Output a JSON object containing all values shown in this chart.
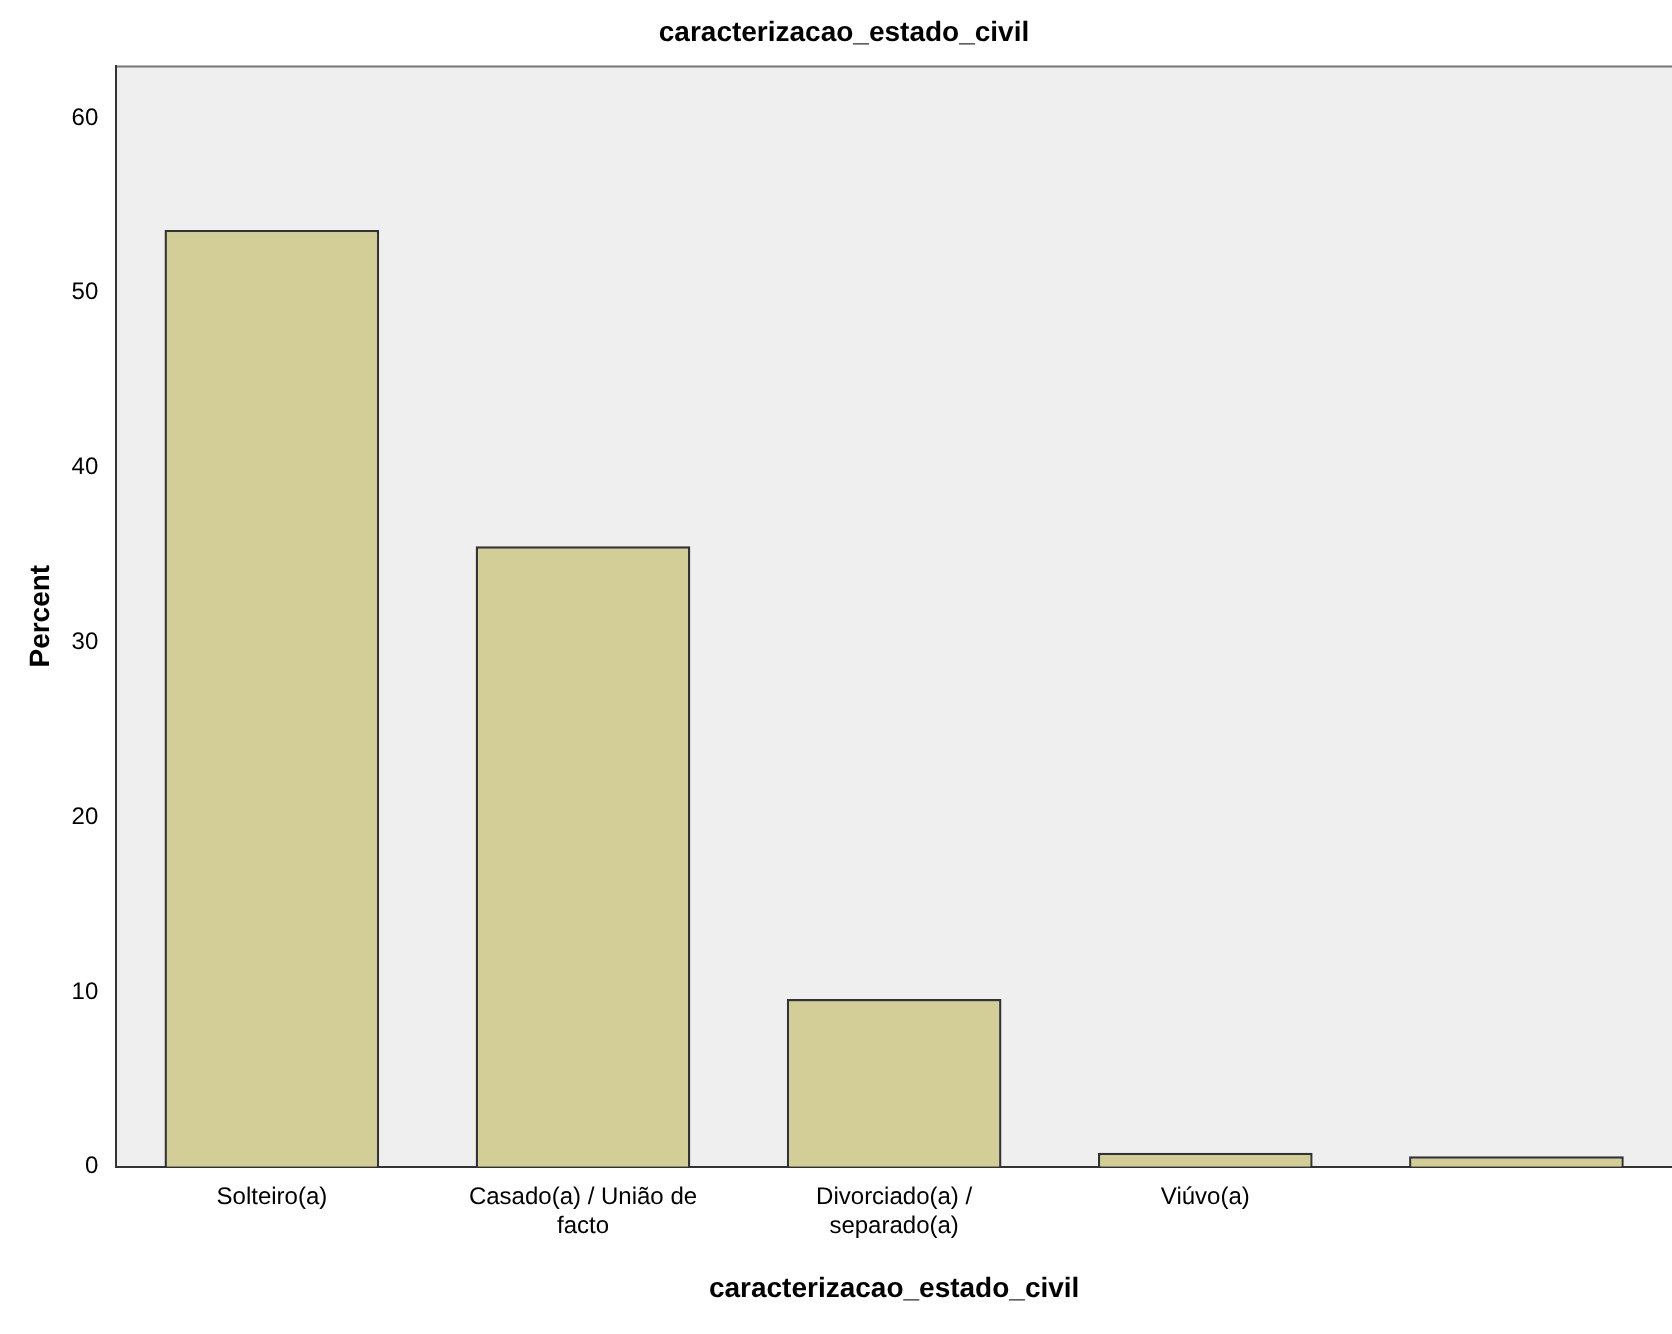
{
  "chart_data": {
    "type": "bar",
    "title": "caracterizacao_estado_civil",
    "xlabel": "caracterizacao_estado_civil",
    "ylabel": "Percent",
    "categories": [
      "Solteiro(a)",
      "Casado(a) / União de facto",
      "Divorciado(a) / separado(a)",
      "Viúvo(a)",
      null
    ],
    "values": [
      53.6,
      35.5,
      9.6,
      0.8,
      0.6
    ],
    "color": "#d3ce97",
    "ylim": [
      0,
      63
    ],
    "yticks": [
      0,
      10,
      20,
      30,
      40,
      50,
      60
    ],
    "grid": false,
    "legend": false
  }
}
